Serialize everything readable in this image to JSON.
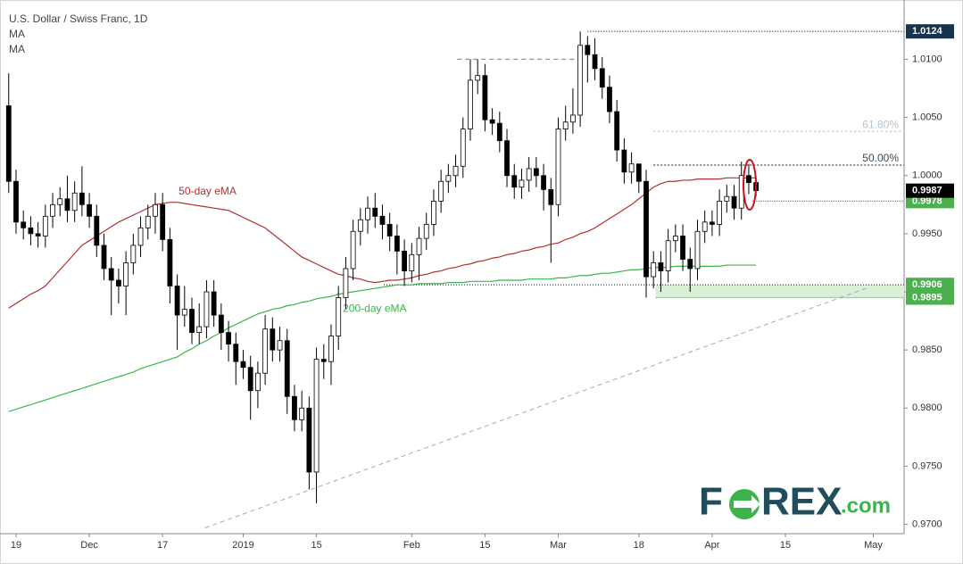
{
  "chart_data": {
    "type": "candlestick",
    "title": "U.S. Dollar / Swiss Franc, 1D",
    "indicators": [
      "MA",
      "MA"
    ],
    "xlim": [
      -1.19,
      122.2
    ],
    "ylim": [
      0.9692,
      1.0151
    ],
    "xticks": [
      {
        "value": 1,
        "label": "19"
      },
      {
        "value": 11,
        "label": "Dec"
      },
      {
        "value": 21,
        "label": "17"
      },
      {
        "value": 32,
        "label": "2019"
      },
      {
        "value": 42,
        "label": "15"
      },
      {
        "value": 55,
        "label": "Feb"
      },
      {
        "value": 65,
        "label": "15"
      },
      {
        "value": 75,
        "label": "Mar"
      },
      {
        "value": 86,
        "label": "18"
      },
      {
        "value": 96,
        "label": "Apr"
      },
      {
        "value": 106,
        "label": "15"
      },
      {
        "value": 118,
        "label": "May"
      }
    ],
    "yticks": [
      {
        "value": 0.97,
        "label": "0.9700"
      },
      {
        "value": 0.975,
        "label": "0.9750"
      },
      {
        "value": 0.98,
        "label": "0.9800"
      },
      {
        "value": 0.985,
        "label": "0.9850"
      },
      {
        "value": 0.99,
        "label": "0.9900"
      },
      {
        "value": 0.995,
        "label": "0.9950"
      },
      {
        "value": 1.0,
        "label": "1.0000"
      },
      {
        "value": 1.005,
        "label": "1.0050"
      },
      {
        "value": 1.01,
        "label": "1.0100"
      }
    ],
    "up_color": "#ffffff",
    "down_color": "#000000",
    "open": [
      1.006,
      0.9995,
      0.996,
      0.9955,
      0.995,
      0.9948,
      0.9965,
      0.9975,
      0.998,
      0.997,
      0.9985,
      0.9975,
      0.9965,
      0.994,
      0.992,
      0.991,
      0.9905,
      0.9925,
      0.994,
      0.9955,
      0.9965,
      0.9975,
      0.9945,
      0.9905,
      0.988,
      0.9885,
      0.9865,
      0.987,
      0.99,
      0.988,
      0.9865,
      0.9855,
      0.984,
      0.9835,
      0.9815,
      0.983,
      0.9868,
      0.985,
      0.9858,
      0.981,
      0.979,
      0.98,
      0.9745,
      0.9842,
      0.984,
      0.9862,
      0.9895,
      0.992,
      0.9952,
      0.9962,
      0.9972,
      0.9965,
      0.9958,
      0.9948,
      0.9935,
      0.9918,
      0.9932,
      0.9946,
      0.9958,
      0.9978,
      0.9995,
      1.0,
      1.0008,
      1.004,
      1.0082,
      1.0086,
      1.0048,
      1.0045,
      1.003,
      1.0,
      0.999,
      0.9996,
      1.0006,
      1.0,
      0.9988,
      0.9975,
      1.004,
      1.0046,
      1.0052,
      1.0112,
      1.0104,
      1.0092,
      1.0076,
      1.0055,
      1.0022,
      1.0003,
      1.001,
      0.9995,
      0.9913,
      0.9925,
      0.9918,
      0.9944,
      0.9948,
      0.9928,
      0.992,
      0.9952,
      0.996,
      0.9958,
      0.9978,
      0.9982,
      0.9972,
      1.0,
      0.9994
    ],
    "high": [
      1.0088,
      1.0005,
      0.997,
      0.9965,
      0.996,
      0.9975,
      0.9985,
      0.999,
      1.0,
      0.9995,
      1.0008,
      0.9985,
      0.9975,
      0.995,
      0.993,
      0.992,
      0.9935,
      0.995,
      0.9965,
      0.9975,
      0.9985,
      0.9985,
      0.9955,
      0.9915,
      0.9905,
      0.9895,
      0.989,
      0.991,
      0.991,
      0.989,
      0.9875,
      0.9865,
      0.985,
      0.9845,
      0.984,
      0.988,
      0.9878,
      0.987,
      0.9868,
      0.982,
      0.9815,
      0.981,
      0.9852,
      0.9855,
      0.9872,
      0.9905,
      0.993,
      0.9962,
      0.9972,
      0.9982,
      0.9985,
      0.9975,
      0.9968,
      0.9958,
      0.9945,
      0.9942,
      0.9956,
      0.9968,
      0.9988,
      1.0005,
      1.001,
      1.0018,
      1.005,
      1.01,
      1.01,
      1.0096,
      1.0058,
      1.0055,
      1.004,
      1.001,
      1.0006,
      1.0016,
      1.0016,
      1.001,
      0.9998,
      1.005,
      1.006,
      1.0075,
      1.0124,
      1.012,
      1.0118,
      1.0102,
      1.0086,
      1.0065,
      1.0032,
      1.002,
      1.001,
      1.0005,
      0.9935,
      0.9935,
      0.9954,
      0.9958,
      0.9958,
      0.9938,
      0.9962,
      0.997,
      0.997,
      0.9988,
      0.9992,
      0.9992,
      1.0012,
      1.001,
      0.9998
    ],
    "low": [
      0.9985,
      0.995,
      0.9945,
      0.994,
      0.9938,
      0.9938,
      0.9955,
      0.9965,
      0.996,
      0.996,
      0.9965,
      0.9955,
      0.993,
      0.991,
      0.988,
      0.989,
      0.988,
      0.9915,
      0.993,
      0.9945,
      0.995,
      0.9935,
      0.989,
      0.985,
      0.987,
      0.9855,
      0.9855,
      0.986,
      0.987,
      0.985,
      0.984,
      0.982,
      0.9825,
      0.979,
      0.98,
      0.982,
      0.984,
      0.984,
      0.9795,
      0.978,
      0.978,
      0.973,
      0.9718,
      0.9825,
      0.982,
      0.985,
      0.9885,
      0.991,
      0.994,
      0.995,
      0.9955,
      0.9945,
      0.9935,
      0.9915,
      0.9905,
      0.9908,
      0.991,
      0.9936,
      0.9948,
      0.9968,
      0.9985,
      0.999,
      0.9998,
      1.003,
      1.007,
      1.0038,
      1.0035,
      1.002,
      0.999,
      0.998,
      0.998,
      0.9986,
      0.999,
      0.997,
      0.9925,
      0.9965,
      1.003,
      1.0036,
      1.0042,
      1.008,
      1.0082,
      1.0066,
      1.0045,
      1.0012,
      0.9993,
      0.9993,
      0.9985,
      0.9895,
      0.9903,
      0.99,
      0.9908,
      0.9934,
      0.9918,
      0.99,
      0.991,
      0.9942,
      0.9948,
      0.9948,
      0.9968,
      0.9962,
      0.9962,
      0.9984,
      0.9982
    ],
    "close": [
      0.9995,
      0.996,
      0.9955,
      0.995,
      0.9948,
      0.9965,
      0.9975,
      0.998,
      0.997,
      0.9985,
      0.9975,
      0.9965,
      0.994,
      0.992,
      0.991,
      0.9905,
      0.9925,
      0.994,
      0.9955,
      0.9965,
      0.9975,
      0.9945,
      0.9905,
      0.988,
      0.9885,
      0.9865,
      0.987,
      0.99,
      0.988,
      0.9865,
      0.9855,
      0.984,
      0.9835,
      0.9815,
      0.983,
      0.9868,
      0.985,
      0.9858,
      0.981,
      0.979,
      0.98,
      0.9745,
      0.9842,
      0.984,
      0.9862,
      0.9895,
      0.992,
      0.9952,
      0.9962,
      0.9972,
      0.9965,
      0.9958,
      0.9948,
      0.9935,
      0.9918,
      0.9932,
      0.9946,
      0.9958,
      0.9978,
      0.9995,
      1.0,
      1.0008,
      1.004,
      1.0082,
      1.0086,
      1.0048,
      1.0045,
      1.003,
      1.0,
      0.999,
      0.9996,
      1.0006,
      1.0,
      0.9988,
      0.9975,
      1.004,
      1.0046,
      1.0052,
      1.0112,
      1.0104,
      1.0092,
      1.0076,
      1.0055,
      1.0022,
      1.0003,
      1.001,
      0.9995,
      0.9913,
      0.9925,
      0.9918,
      0.9944,
      0.9948,
      0.9928,
      0.992,
      0.9952,
      0.996,
      0.9958,
      0.9978,
      0.9982,
      0.9972,
      1.0,
      0.9994,
      0.9987
    ],
    "series": [
      {
        "name": "50-day eMA",
        "color": "#b03030",
        "values": [
          0.9886,
          0.989,
          0.9894,
          0.9898,
          0.9901,
          0.9905,
          0.9912,
          0.9919,
          0.9926,
          0.9933,
          0.994,
          0.9944,
          0.9948,
          0.9952,
          0.9956,
          0.996,
          0.9963,
          0.9966,
          0.9969,
          0.9972,
          0.9975,
          0.9976,
          0.9977,
          0.9977,
          0.9976,
          0.9975,
          0.9974,
          0.9973,
          0.9972,
          0.9971,
          0.997,
          0.9967,
          0.9964,
          0.9961,
          0.9958,
          0.9955,
          0.995,
          0.9945,
          0.994,
          0.9935,
          0.993,
          0.9927,
          0.9924,
          0.9921,
          0.9918,
          0.9915,
          0.9914,
          0.9912,
          0.9911,
          0.9909,
          0.9908,
          0.9909,
          0.991,
          0.991,
          0.9911,
          0.9912,
          0.9914,
          0.9915,
          0.9917,
          0.9918,
          0.992,
          0.9921,
          0.9923,
          0.9924,
          0.9926,
          0.9927,
          0.9929,
          0.993,
          0.9932,
          0.9933,
          0.9935,
          0.9936,
          0.9938,
          0.9939,
          0.9941,
          0.9942,
          0.9945,
          0.9947,
          0.995,
          0.9952,
          0.9955,
          0.9959,
          0.9963,
          0.9967,
          0.9971,
          0.9975,
          0.998,
          0.9985,
          0.999,
          0.9993,
          0.9995,
          0.9995,
          0.9996,
          0.9996,
          0.9997,
          0.9997,
          0.9997,
          0.9997,
          0.9998,
          0.9998,
          0.9998,
          0.9998,
          0.9998
        ]
      },
      {
        "name": "200-day eMA",
        "color": "#3cb44b",
        "values": [
          0.9797,
          0.9799,
          0.9801,
          0.9803,
          0.9805,
          0.9807,
          0.9809,
          0.9811,
          0.9813,
          0.9815,
          0.9817,
          0.9819,
          0.9821,
          0.9823,
          0.9825,
          0.9827,
          0.9829,
          0.9831,
          0.9834,
          0.9836,
          0.9838,
          0.984,
          0.9842,
          0.9844,
          0.9848,
          0.9851,
          0.9855,
          0.9858,
          0.9862,
          0.9865,
          0.9869,
          0.9872,
          0.9875,
          0.9878,
          0.9881,
          0.9883,
          0.9885,
          0.9886,
          0.9888,
          0.9889,
          0.9891,
          0.9892,
          0.9894,
          0.9895,
          0.9896,
          0.9898,
          0.9899,
          0.99,
          0.9901,
          0.9902,
          0.9903,
          0.9904,
          0.9905,
          0.9906,
          0.9906,
          0.9906,
          0.9907,
          0.9907,
          0.9907,
          0.9907,
          0.9908,
          0.9908,
          0.9908,
          0.9909,
          0.9909,
          0.9909,
          0.9909,
          0.991,
          0.991,
          0.991,
          0.991,
          0.9911,
          0.9911,
          0.9911,
          0.9911,
          0.9912,
          0.9912,
          0.9913,
          0.9914,
          0.9914,
          0.9915,
          0.9916,
          0.9916,
          0.9917,
          0.9918,
          0.9919,
          0.9919,
          0.992,
          0.9921,
          0.9921,
          0.9921,
          0.9922,
          0.9922,
          0.9922,
          0.9922,
          0.9922,
          0.9922,
          0.9922,
          0.9923,
          0.9923,
          0.9923,
          0.9923,
          0.9923
        ]
      }
    ],
    "series_labels": [
      {
        "x": 23.2,
        "y": 0.9986
      },
      {
        "x": 45.6,
        "y": 0.9885
      }
    ],
    "levels": [
      {
        "value": 1.0124,
        "from": 79,
        "color": "#1c3f5e",
        "dash": "1 2",
        "box": "#17334d"
      },
      {
        "value": 1.01,
        "from": 61.2,
        "to": 78,
        "color": "#8a9aa6",
        "dash": "5 4"
      },
      {
        "value": 1.0038,
        "label": "61.80%",
        "from": 88,
        "color": "#b8c4cc",
        "dash": "2 3"
      },
      {
        "value": 1.0009,
        "label": "50.00%",
        "from": 88,
        "color": "#3a4a56",
        "dash": "2 2"
      },
      {
        "value": 0.9978,
        "from": 101.5,
        "color": "#4caf50",
        "dash": "1 1",
        "box": "#4caf50"
      },
      {
        "value": 0.9987,
        "box": "#000000"
      },
      {
        "value": 0.9906,
        "from": 51.2,
        "color": "#2b4a5a",
        "dash": "1 2",
        "box": "#4caf50"
      },
      {
        "value": 0.9895,
        "from": 88.3,
        "color": "#4caf50",
        "dash": "1 1",
        "box": "#4caf50"
      }
    ],
    "zone": {
      "from": 88.3,
      "low": 0.9895,
      "high": 0.9906,
      "color": "#d9f0d6"
    },
    "trendline": {
      "x": [
        26.8,
        117
      ],
      "y": [
        0.9697,
        0.9903
      ],
      "color": "#a9a9a9"
    },
    "logo": [
      "F",
      "REX",
      ".com"
    ]
  }
}
